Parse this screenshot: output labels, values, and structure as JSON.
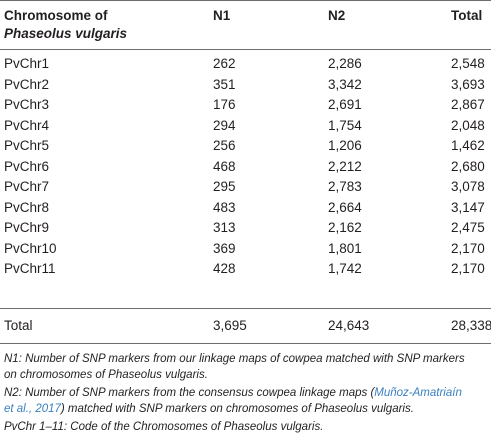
{
  "table": {
    "headers": {
      "c0_line1": "Chromosome of",
      "c0_line2": "Phaseolus vulgaris",
      "c1": "N1",
      "c2": "N2",
      "c3": "Total"
    },
    "rows": [
      {
        "chr": "PvChr1",
        "n1": "262",
        "n2": "2,286",
        "total": "2,548"
      },
      {
        "chr": "PvChr2",
        "n1": "351",
        "n2": "3,342",
        "total": "3,693"
      },
      {
        "chr": "PvChr3",
        "n1": "176",
        "n2": "2,691",
        "total": "2,867"
      },
      {
        "chr": "PvChr4",
        "n1": "294",
        "n2": "1,754",
        "total": "2,048"
      },
      {
        "chr": "PvChr5",
        "n1": "256",
        "n2": "1,206",
        "total": "1,462"
      },
      {
        "chr": "PvChr6",
        "n1": "468",
        "n2": "2,212",
        "total": "2,680"
      },
      {
        "chr": "PvChr7",
        "n1": "295",
        "n2": "2,783",
        "total": "3,078"
      },
      {
        "chr": "PvChr8",
        "n1": "483",
        "n2": "2,664",
        "total": "3,147"
      },
      {
        "chr": "PvChr9",
        "n1": "313",
        "n2": "2,162",
        "total": "2,475"
      },
      {
        "chr": "PvChr10",
        "n1": "369",
        "n2": "1,801",
        "total": "2,170"
      },
      {
        "chr": "PvChr11",
        "n1": "428",
        "n2": "1,742",
        "total": "2,170"
      }
    ],
    "total_row": {
      "label": "Total",
      "n1": "3,695",
      "n2": "24,643",
      "total": "28,338"
    }
  },
  "footnotes": {
    "n1_line1": "N1: Number of SNP markers from our linkage maps of cowpea matched with SNP markers",
    "n1_line2": "on chromosomes of Phaseolus vulgaris.",
    "n2_line1_pre": "N2: Number of SNP markers from the consensus cowpea linkage maps (",
    "n2_line1_link": "Muñoz-Amatriaín",
    "n2_line2_link": "et al., 2017",
    "n2_line2_post": ") matched with SNP markers on chromosomes of Phaseolus vulgaris.",
    "pvchr": "PvChr 1–11: Code of the Chromosomes of Phaseolus vulgaris."
  },
  "colors": {
    "rule": "#6d6e71",
    "link": "#3a7fc1",
    "text": "#231f20"
  }
}
